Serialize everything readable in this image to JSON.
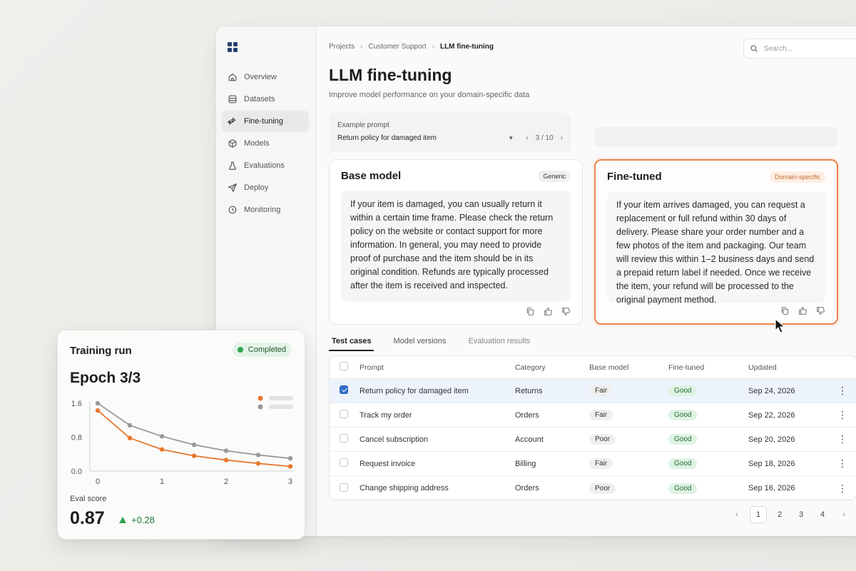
{
  "sidebar": {
    "items": [
      {
        "label": "Overview",
        "icon": "home-icon"
      },
      {
        "label": "Datasets",
        "icon": "database-icon"
      },
      {
        "label": "Fine-tuning",
        "icon": "sparkle-icon",
        "active": true
      },
      {
        "label": "Models",
        "icon": "cube-icon"
      },
      {
        "label": "Evaluations",
        "icon": "flask-icon"
      },
      {
        "label": "Deploy",
        "icon": "send-icon"
      },
      {
        "label": "Monitoring",
        "icon": "monitor-icon"
      }
    ]
  },
  "breadcrumb": [
    "Projects",
    "Customer Support",
    "LLM fine-tuning"
  ],
  "search": {
    "placeholder": "Search..."
  },
  "page": {
    "title": "LLM fine-tuning",
    "subtitle": "Improve model performance on your domain-specific data"
  },
  "prompt": {
    "label": "Example prompt",
    "value": "Return policy for damaged item",
    "counter": "3 / 10"
  },
  "base_card": {
    "title": "Base model",
    "tag": "Generic",
    "text": "If your item is damaged, you can usually return it within a certain time frame. Please check the return policy on the website or contact support for more information. In general, you may need to provide proof of purchase and the item should be in its original condition. Refunds are typically processed after the item is received and inspected."
  },
  "fine_card": {
    "title": "Fine-tuned",
    "tag": "Domain-specific",
    "text": "If your item arrives damaged, you can request a replacement or full refund within 30 days of delivery. Please share your order number and a few photos of the item and packaging. Our team will review this within 1–2 business days and send a prepaid return label if needed. Once we receive the item, your refund will be processed to the original payment method."
  },
  "tabs": [
    {
      "label": "Test cases",
      "active": true
    },
    {
      "label": "Model versions"
    },
    {
      "label": "Evaluation results"
    }
  ],
  "table": {
    "headers": [
      "Prompt",
      "Category",
      "Base model",
      "Fine-tuned",
      "Updated"
    ],
    "rows": [
      {
        "prompt": "Return policy for damaged item",
        "category": "Returns",
        "base": "Fair",
        "fine": "Good",
        "updated": "Sep 24, 2026",
        "selected": true
      },
      {
        "prompt": "Track my order",
        "category": "Orders",
        "base": "Fair",
        "fine": "Good",
        "updated": "Sep 22, 2026"
      },
      {
        "prompt": "Cancel subscription",
        "category": "Account",
        "base": "Poor",
        "fine": "Good",
        "updated": "Sep 20, 2026"
      },
      {
        "prompt": "Request invoice",
        "category": "Billing",
        "base": "Fair",
        "fine": "Good",
        "updated": "Sep 18, 2026"
      },
      {
        "prompt": "Change shipping address",
        "category": "Orders",
        "base": "Poor",
        "fine": "Good",
        "updated": "Sep 16, 2026"
      }
    ]
  },
  "pagination": {
    "pages": [
      "1",
      "2",
      "3",
      "4"
    ],
    "active": "1"
  },
  "training": {
    "title": "Training run",
    "status": "Completed",
    "epoch": "Epoch 3/3",
    "eval_label": "Eval score",
    "eval_value": "0.87",
    "eval_delta": "+0.28"
  },
  "chart_data": {
    "type": "line",
    "x": [
      0,
      0.5,
      1,
      1.5,
      2,
      2.5,
      3
    ],
    "yticks": [
      "1.6",
      "0.8",
      "0.0"
    ],
    "xticks": [
      "0",
      "1",
      "2",
      "3"
    ],
    "ylim": [
      0,
      1.6
    ],
    "xlim": [
      0,
      3
    ],
    "series": [
      {
        "color": "#9a9a9a",
        "values": [
          1.6,
          1.08,
          0.82,
          0.62,
          0.48,
          0.38,
          0.3
        ]
      },
      {
        "color": "#e8772e",
        "values": [
          1.43,
          0.78,
          0.51,
          0.36,
          0.26,
          0.18,
          0.11
        ]
      }
    ],
    "legend": "top-right",
    "grid": false
  },
  "colors": {
    "accent": "#e8844c",
    "good": "#2ea44f",
    "selected": "#2f6bc9"
  }
}
